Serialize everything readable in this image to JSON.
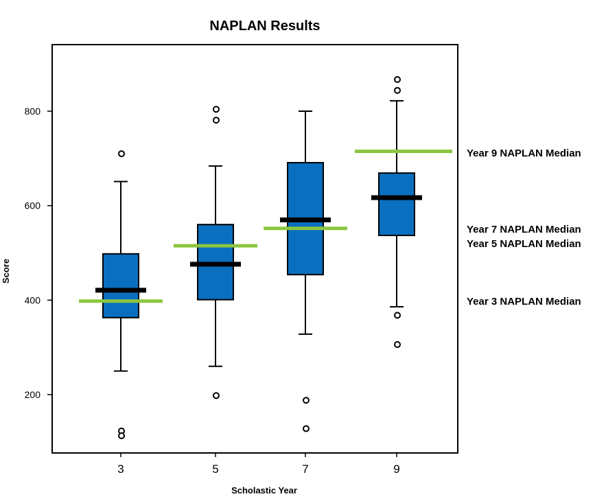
{
  "chart_data": {
    "type": "box",
    "title": "NAPLAN Results",
    "xlabel": "Scholastic Year",
    "ylabel": "Score",
    "categories": [
      "3",
      "5",
      "7",
      "9"
    ],
    "ylim": [
      80,
      950
    ],
    "y_ticks": [
      200,
      400,
      600,
      800
    ],
    "boxes": [
      {
        "category": "3",
        "whisker_low": 250,
        "q1": 363,
        "median": 421,
        "q3": 498,
        "whisker_high": 651,
        "outliers": [
          710,
          123,
          113
        ]
      },
      {
        "category": "5",
        "whisker_low": 260,
        "q1": 401,
        "median": 476,
        "q3": 560,
        "whisker_high": 684,
        "outliers": [
          804,
          781,
          198
        ]
      },
      {
        "category": "7",
        "whisker_low": 328,
        "q1": 454,
        "median": 570,
        "q3": 691,
        "whisker_high": 800,
        "outliers": [
          188,
          128
        ]
      },
      {
        "category": "9",
        "whisker_low": 386,
        "q1": 537,
        "median": 617,
        "q3": 669,
        "whisker_high": 822,
        "outliers": [
          867,
          844,
          368,
          306
        ]
      }
    ],
    "reference_lines": [
      {
        "category": "3",
        "value": 398,
        "label": "Year 3  NAPLAN Median"
      },
      {
        "category": "5",
        "value": 515,
        "label": "Year 5 NAPLAN Median"
      },
      {
        "category": "7",
        "value": 552,
        "label": "Year 7 NAPLAN Median"
      },
      {
        "category": "9",
        "value": 715,
        "label": "Year 9 NAPLAN Median"
      }
    ],
    "colors": {
      "box": "#0a6fbf",
      "median": "#000000",
      "reference": "#8cc63f"
    },
    "grid": false,
    "legend": "none"
  }
}
